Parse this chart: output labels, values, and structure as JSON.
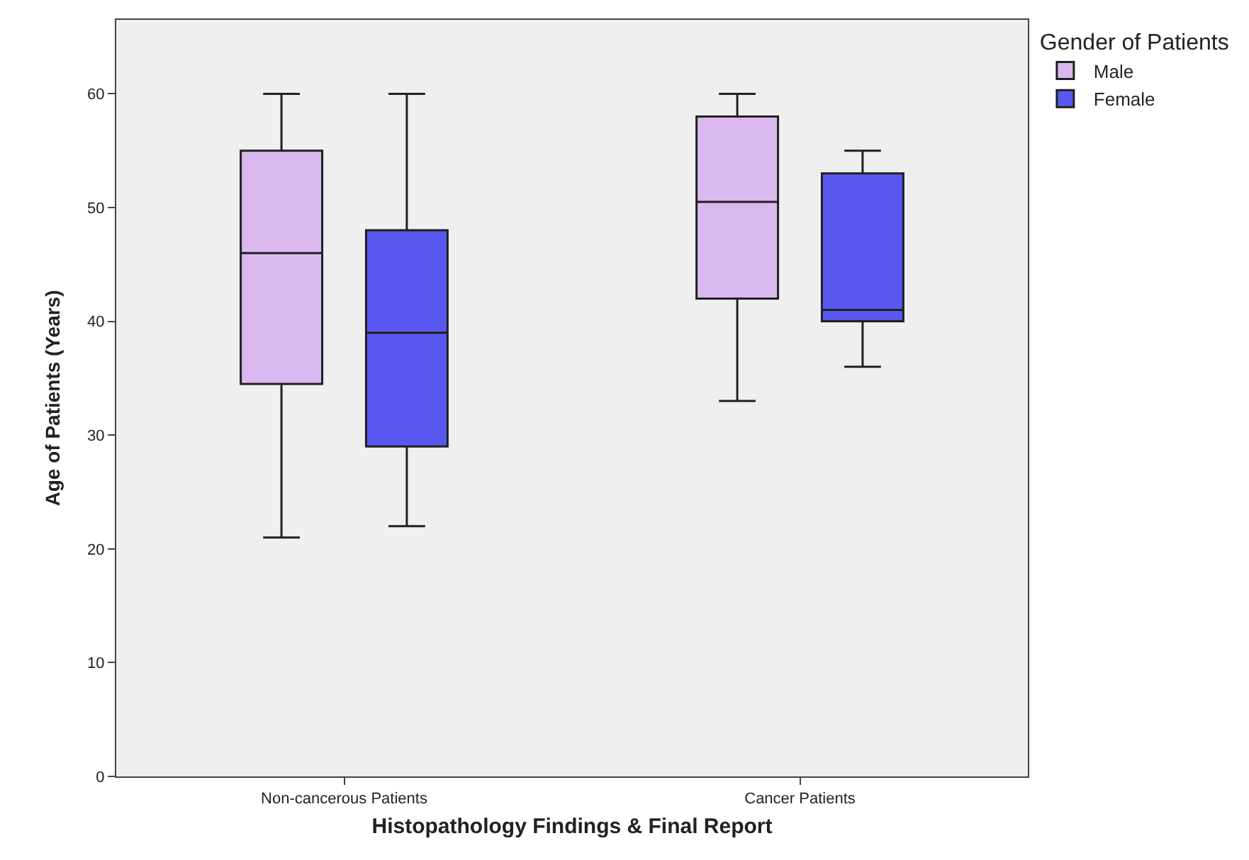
{
  "chart_data": {
    "type": "box",
    "xlabel": "Histopathology Findings & Final Report",
    "ylabel": "Age of Patients (Years)",
    "legend_title": "Gender of Patients",
    "legend": "top right",
    "grid": false,
    "categories": [
      "Non-cancerous Patients",
      "Cancer Patients"
    ],
    "ylim": [
      0,
      66.5
    ],
    "yticks": [
      0,
      10,
      20,
      30,
      40,
      50,
      60
    ],
    "series": [
      {
        "name": "Male",
        "color": "#dcb8f0",
        "boxes": [
          {
            "low": 21,
            "q1": 34.5,
            "median": 46,
            "q3": 55,
            "high": 60
          },
          {
            "low": 33,
            "q1": 42,
            "median": 50.5,
            "q3": 58,
            "high": 60
          }
        ]
      },
      {
        "name": "Female",
        "color": "#5858f0",
        "boxes": [
          {
            "low": 22,
            "q1": 29,
            "median": 39,
            "q3": 48,
            "high": 60
          },
          {
            "low": 36,
            "q1": 40,
            "median": 41,
            "q3": 53,
            "high": 55
          }
        ]
      }
    ]
  }
}
